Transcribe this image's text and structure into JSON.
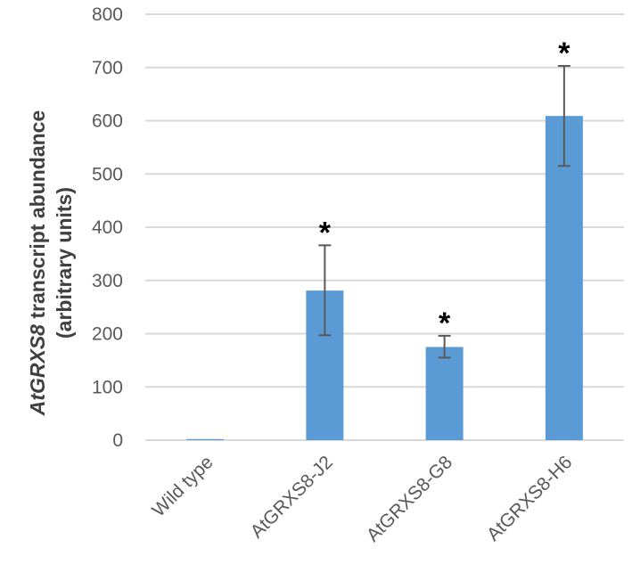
{
  "chart_data": {
    "type": "bar",
    "categories": [
      "Wild type",
      "AtGRXS8-J2",
      "AtGRXS8-G8",
      "AtGRXS8-H6"
    ],
    "values": [
      2,
      281,
      175,
      609
    ],
    "error_plus": [
      0,
      85,
      21,
      94
    ],
    "error_minus": [
      0,
      84,
      20,
      94
    ],
    "significance": [
      "",
      "*",
      "*",
      "*"
    ],
    "ylabel_italic": "AtGRXS8",
    "ylabel_rest": " transcript abundance",
    "ylabel_line2": "(arbitrary units)",
    "ylim": [
      0,
      800
    ],
    "yticks": [
      "0",
      "100",
      "200",
      "300",
      "400",
      "500",
      "600",
      "700",
      "800"
    ],
    "grid": true,
    "legend": "none",
    "bar_color": "#5B9BD5",
    "grid_color": "#D9D9D9",
    "error_color": "#595959"
  }
}
